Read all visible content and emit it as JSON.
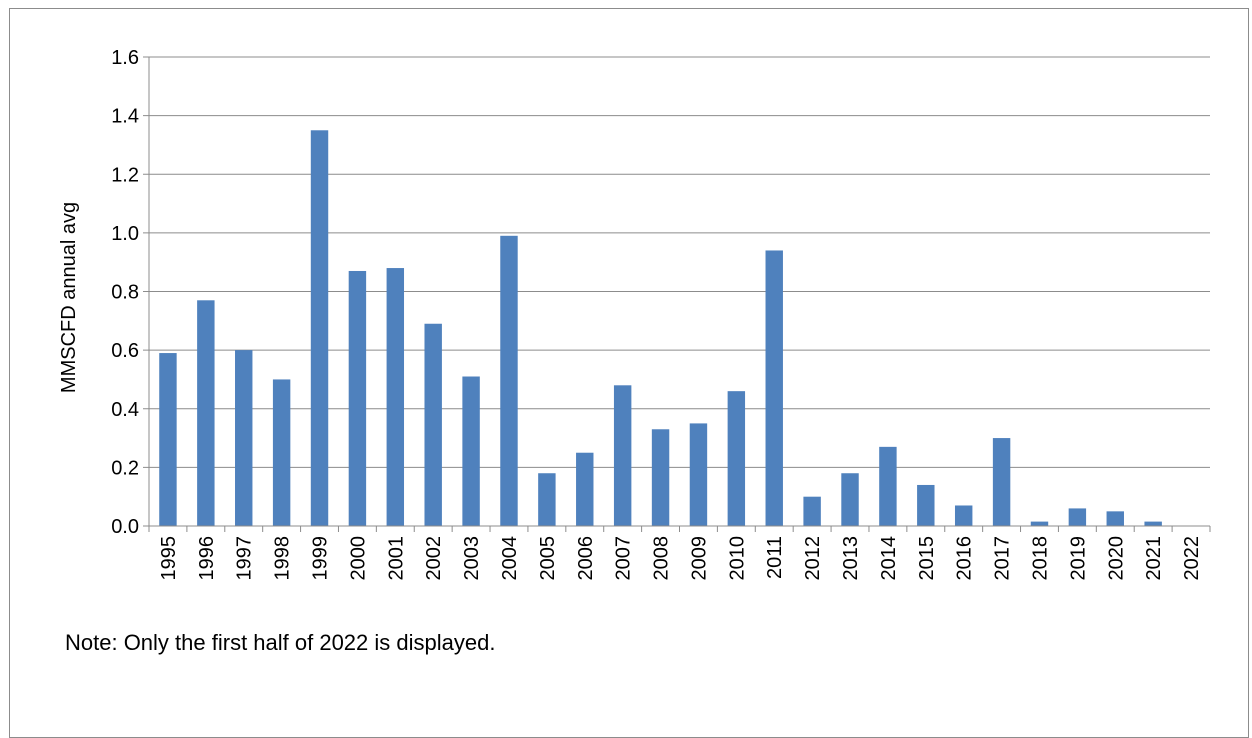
{
  "chart_data": {
    "type": "bar",
    "title": "",
    "xlabel": "",
    "ylabel": "MMSCFD annual avg",
    "ylim": [
      0,
      1.6
    ],
    "yticks": [
      "0.0",
      "0.2",
      "0.4",
      "0.6",
      "0.8",
      "1.0",
      "1.2",
      "1.4",
      "1.6"
    ],
    "grid": true,
    "legend": "none",
    "bar_color": "#4F81BD",
    "categories": [
      "1995",
      "1996",
      "1997",
      "1998",
      "1999",
      "2000",
      "2001",
      "2002",
      "2003",
      "2004",
      "2005",
      "2006",
      "2007",
      "2008",
      "2009",
      "2010",
      "2011",
      "2012",
      "2013",
      "2014",
      "2015",
      "2016",
      "2017",
      "2018",
      "2019",
      "2020",
      "2021",
      "2022"
    ],
    "values": [
      0.59,
      0.77,
      0.6,
      0.5,
      1.35,
      0.87,
      0.88,
      0.69,
      0.51,
      0.99,
      0.18,
      0.25,
      0.48,
      0.33,
      0.35,
      0.46,
      0.94,
      0.1,
      0.18,
      0.27,
      0.14,
      0.07,
      0.3,
      0.015,
      0.06,
      0.05,
      0.015,
      0.0
    ]
  },
  "note": "Note: Only the first half of 2022 is displayed."
}
